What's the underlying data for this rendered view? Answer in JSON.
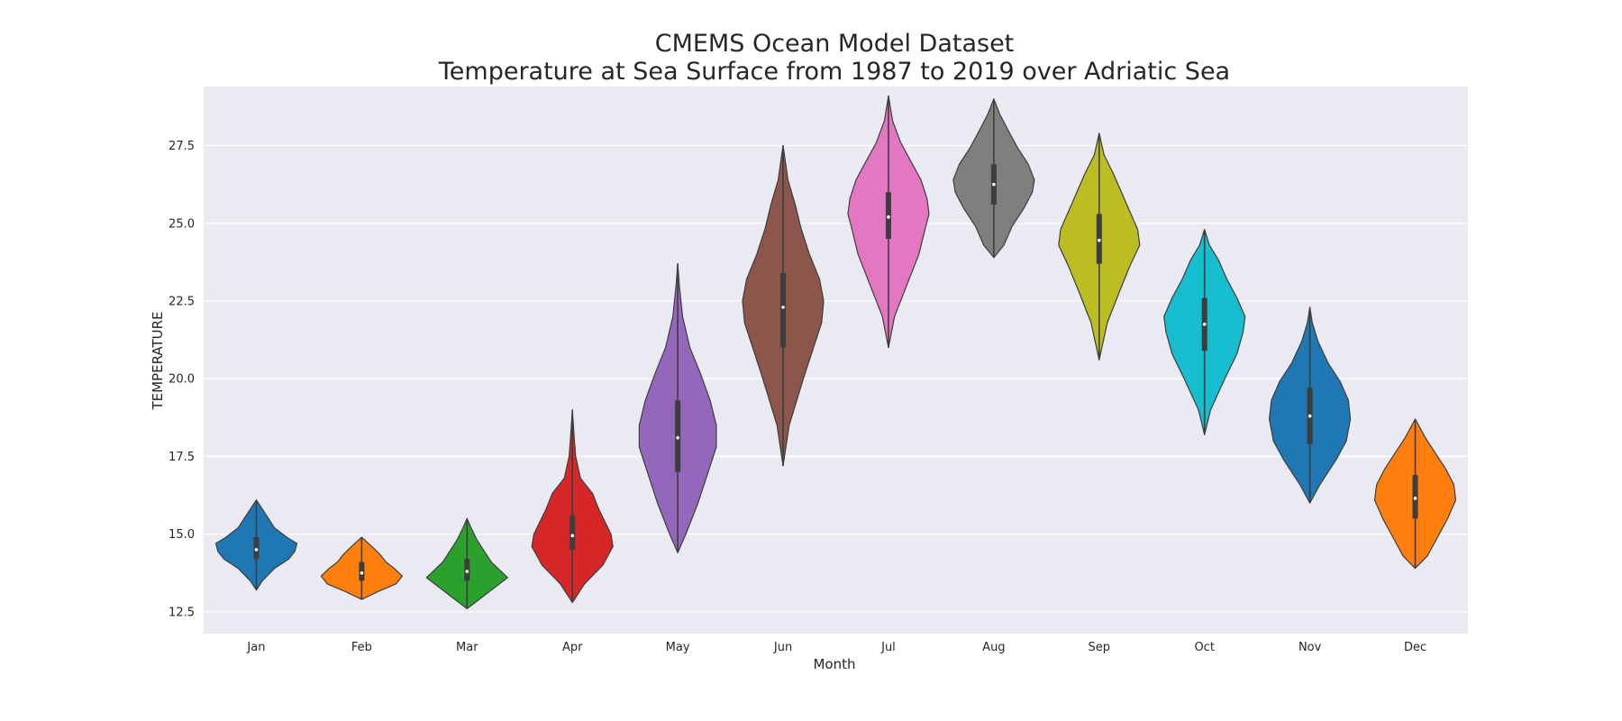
{
  "chart_data": {
    "type": "violin",
    "title": [
      "CMEMS Ocean Model Dataset",
      "Temperature at Sea Surface from 1987 to 2019 over Adriatic Sea"
    ],
    "xlabel": "Month",
    "ylabel": "TEMPERATURE",
    "ylim": [
      11.8,
      29.4
    ],
    "yticks": [
      12.5,
      15.0,
      17.5,
      20.0,
      22.5,
      25.0,
      27.5
    ],
    "grid": true,
    "categories": [
      "Jan",
      "Feb",
      "Mar",
      "Apr",
      "May",
      "Jun",
      "Jul",
      "Aug",
      "Sep",
      "Oct",
      "Nov",
      "Dec"
    ],
    "series": [
      {
        "category": "Jan",
        "color": "#1f77b4",
        "min": 13.2,
        "q1": 14.2,
        "median": 14.5,
        "q3": 14.9,
        "max": 16.1,
        "profile": [
          [
            13.2,
            0
          ],
          [
            13.5,
            0.15
          ],
          [
            13.9,
            0.45
          ],
          [
            14.2,
            0.8
          ],
          [
            14.45,
            0.95
          ],
          [
            14.7,
            1.0
          ],
          [
            14.9,
            0.75
          ],
          [
            15.2,
            0.45
          ],
          [
            15.6,
            0.25
          ],
          [
            16.1,
            0
          ]
        ]
      },
      {
        "category": "Feb",
        "color": "#ff7f0e",
        "min": 12.9,
        "q1": 13.5,
        "median": 13.75,
        "q3": 14.1,
        "max": 14.9,
        "profile": [
          [
            12.9,
            0
          ],
          [
            13.15,
            0.4
          ],
          [
            13.4,
            0.85
          ],
          [
            13.65,
            1.0
          ],
          [
            13.9,
            0.8
          ],
          [
            14.1,
            0.6
          ],
          [
            14.35,
            0.45
          ],
          [
            14.6,
            0.25
          ],
          [
            14.9,
            0
          ]
        ]
      },
      {
        "category": "Mar",
        "color": "#2ca02c",
        "min": 12.6,
        "q1": 13.5,
        "median": 13.8,
        "q3": 14.2,
        "max": 15.5,
        "profile": [
          [
            12.6,
            0
          ],
          [
            12.9,
            0.3
          ],
          [
            13.3,
            0.7
          ],
          [
            13.6,
            1.0
          ],
          [
            13.85,
            0.8
          ],
          [
            14.1,
            0.6
          ],
          [
            14.4,
            0.45
          ],
          [
            14.8,
            0.25
          ],
          [
            15.2,
            0.1
          ],
          [
            15.5,
            0
          ]
        ]
      },
      {
        "category": "Apr",
        "color": "#d62728",
        "min": 12.8,
        "q1": 14.5,
        "median": 14.95,
        "q3": 15.6,
        "max": 19.0,
        "profile": [
          [
            12.8,
            0
          ],
          [
            13.4,
            0.3
          ],
          [
            14.0,
            0.75
          ],
          [
            14.6,
            1.0
          ],
          [
            15.0,
            0.95
          ],
          [
            15.4,
            0.8
          ],
          [
            15.8,
            0.65
          ],
          [
            16.3,
            0.5
          ],
          [
            16.8,
            0.2
          ],
          [
            17.5,
            0.08
          ],
          [
            18.2,
            0.04
          ],
          [
            19.0,
            0
          ]
        ]
      },
      {
        "category": "May",
        "color": "#9467bd",
        "min": 14.4,
        "q1": 17.0,
        "median": 18.1,
        "q3": 19.3,
        "max": 23.7,
        "profile": [
          [
            14.4,
            0
          ],
          [
            15.0,
            0.2
          ],
          [
            16.0,
            0.5
          ],
          [
            17.0,
            0.75
          ],
          [
            17.8,
            0.95
          ],
          [
            18.5,
            0.95
          ],
          [
            19.3,
            0.8
          ],
          [
            20.2,
            0.55
          ],
          [
            21.0,
            0.3
          ],
          [
            22.0,
            0.12
          ],
          [
            23.0,
            0.04
          ],
          [
            23.7,
            0
          ]
        ]
      },
      {
        "category": "Jun",
        "color": "#8c564b",
        "min": 17.2,
        "q1": 21.0,
        "median": 22.3,
        "q3": 23.4,
        "max": 27.5,
        "profile": [
          [
            17.2,
            0
          ],
          [
            18.5,
            0.15
          ],
          [
            20.0,
            0.5
          ],
          [
            21.0,
            0.75
          ],
          [
            21.8,
            0.95
          ],
          [
            22.5,
            1.0
          ],
          [
            23.2,
            0.9
          ],
          [
            24.0,
            0.65
          ],
          [
            24.8,
            0.45
          ],
          [
            25.6,
            0.3
          ],
          [
            26.4,
            0.12
          ],
          [
            27.5,
            0
          ]
        ]
      },
      {
        "category": "Jul",
        "color": "#e377c2",
        "min": 21.0,
        "q1": 24.5,
        "median": 25.2,
        "q3": 26.0,
        "max": 29.1,
        "profile": [
          [
            21.0,
            0
          ],
          [
            22.0,
            0.15
          ],
          [
            23.0,
            0.45
          ],
          [
            24.0,
            0.75
          ],
          [
            24.8,
            0.9
          ],
          [
            25.3,
            1.0
          ],
          [
            25.8,
            0.95
          ],
          [
            26.4,
            0.8
          ],
          [
            27.0,
            0.55
          ],
          [
            27.6,
            0.3
          ],
          [
            28.3,
            0.1
          ],
          [
            29.1,
            0
          ]
        ]
      },
      {
        "category": "Aug",
        "color": "#7f7f7f",
        "min": 23.9,
        "q1": 25.6,
        "median": 26.25,
        "q3": 26.9,
        "max": 29.0,
        "profile": [
          [
            23.9,
            0
          ],
          [
            24.3,
            0.25
          ],
          [
            24.9,
            0.45
          ],
          [
            25.5,
            0.75
          ],
          [
            26.0,
            0.95
          ],
          [
            26.4,
            1.0
          ],
          [
            26.9,
            0.85
          ],
          [
            27.4,
            0.6
          ],
          [
            28.0,
            0.35
          ],
          [
            28.5,
            0.15
          ],
          [
            29.0,
            0
          ]
        ]
      },
      {
        "category": "Sep",
        "color": "#bcbd22",
        "min": 20.6,
        "q1": 23.7,
        "median": 24.45,
        "q3": 25.3,
        "max": 27.9,
        "profile": [
          [
            20.6,
            0
          ],
          [
            21.8,
            0.2
          ],
          [
            22.8,
            0.5
          ],
          [
            23.6,
            0.75
          ],
          [
            24.3,
            1.0
          ],
          [
            24.8,
            0.95
          ],
          [
            25.4,
            0.75
          ],
          [
            26.0,
            0.55
          ],
          [
            26.6,
            0.35
          ],
          [
            27.2,
            0.12
          ],
          [
            27.9,
            0
          ]
        ]
      },
      {
        "category": "Oct",
        "color": "#17becf",
        "min": 18.2,
        "q1": 20.9,
        "median": 21.75,
        "q3": 22.6,
        "max": 24.8,
        "profile": [
          [
            18.2,
            0
          ],
          [
            19.0,
            0.15
          ],
          [
            20.0,
            0.5
          ],
          [
            20.8,
            0.8
          ],
          [
            21.5,
            0.95
          ],
          [
            22.0,
            1.0
          ],
          [
            22.6,
            0.8
          ],
          [
            23.2,
            0.55
          ],
          [
            23.8,
            0.35
          ],
          [
            24.3,
            0.12
          ],
          [
            24.8,
            0
          ]
        ]
      },
      {
        "category": "Nov",
        "color": "#1f77b4",
        "min": 16.0,
        "q1": 17.9,
        "median": 18.8,
        "q3": 19.7,
        "max": 22.3,
        "profile": [
          [
            16.0,
            0
          ],
          [
            16.6,
            0.25
          ],
          [
            17.4,
            0.65
          ],
          [
            18.0,
            0.9
          ],
          [
            18.7,
            1.0
          ],
          [
            19.3,
            0.95
          ],
          [
            19.9,
            0.75
          ],
          [
            20.5,
            0.45
          ],
          [
            21.2,
            0.2
          ],
          [
            21.8,
            0.06
          ],
          [
            22.3,
            0
          ]
        ]
      },
      {
        "category": "Dec",
        "color": "#ff7f0e",
        "min": 13.9,
        "q1": 15.5,
        "median": 16.15,
        "q3": 16.9,
        "max": 18.7,
        "profile": [
          [
            13.9,
            0
          ],
          [
            14.3,
            0.3
          ],
          [
            14.9,
            0.55
          ],
          [
            15.5,
            0.8
          ],
          [
            16.1,
            1.0
          ],
          [
            16.6,
            0.95
          ],
          [
            17.1,
            0.75
          ],
          [
            17.6,
            0.5
          ],
          [
            18.1,
            0.25
          ],
          [
            18.7,
            0
          ]
        ]
      }
    ]
  }
}
